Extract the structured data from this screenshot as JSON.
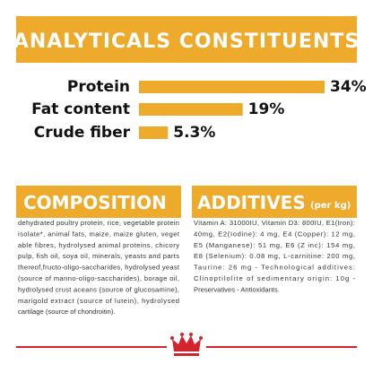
{
  "chart_data": {
    "type": "bar",
    "title": "ANALYTICALS CONSTITUENTS",
    "color": "#eeaa2a",
    "categories": [
      "Protein",
      "Fat content",
      "Crude fiber"
    ],
    "values": [
      34,
      19,
      5.3
    ],
    "value_labels": [
      "34%",
      "19%",
      "5.3%"
    ]
  },
  "composition": {
    "title": "COMPOSITION",
    "lines": [
      "dehydrated poultry protein, rice, vegetable protein",
      "isolate*, animal fats, maize, maize gluten, veget",
      "able fibres, hydrolysed animal proteins, chicory",
      "pulp, fish oil, soya oil, minerals, yeasts and parts",
      "thereof,fructo-oligo-saccharides, hydrolysed yeast",
      "(source of manno-oligo-saccharides), borage oil,",
      "hydrolysed crust aceans (source of glucosamine),",
      "marigold extract (source of lutein), hydrolysed",
      "cartilage (source of chondroitin)."
    ]
  },
  "additives": {
    "title": "ADDITIVES",
    "unit": "(per kg)",
    "lines": [
      "Vitamin A: 31000IU, Vitamin D3: 800IU, E1(Iron):",
      "40mg, E2(Iodine): 4 mg, E4 (Copper): 12 mg,",
      "E5 (Manganese): 51 mg, E6 (Z inc): 154 mg,",
      "E8 (Selenium): 0.08 mg, L-carnitine: 200 mg,",
      "Taurine: 26 mg - Technological additives:",
      "Clinoptilolite of sedimentary origin: 10g -",
      "Preservatives - Antioxidants."
    ]
  }
}
